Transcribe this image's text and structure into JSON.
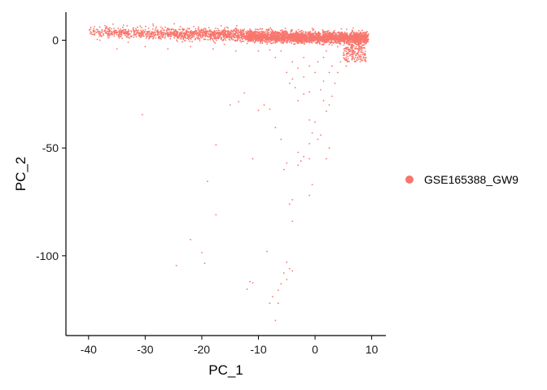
{
  "chart_data": {
    "type": "scatter",
    "xlabel": "PC_1",
    "ylabel": "PC_2",
    "xlim": [
      -44,
      12.5
    ],
    "ylim": [
      -137,
      13
    ],
    "x_ticks": [
      -40,
      -30,
      -20,
      -10,
      0,
      10
    ],
    "y_ticks": [
      0,
      -50,
      -100
    ],
    "x_tick_labels": [
      "-40",
      "-30",
      "-20",
      "-10",
      "0",
      "10"
    ],
    "y_tick_labels": [
      "0",
      "-50",
      "-100"
    ],
    "grid": false,
    "legend_position": "right",
    "series": [
      {
        "name": "GSE165388_GW9",
        "color": "#F8766D",
        "points_shown": "sample of dense cloud plus sparse outliers",
        "outliers": [
          [
            -30.5,
            -34.5
          ],
          [
            -24.5,
            -104.5
          ],
          [
            -22,
            -92.5
          ],
          [
            -20,
            -98.5
          ],
          [
            -19.5,
            -103.5
          ],
          [
            -19,
            -65.5
          ],
          [
            -17.5,
            -48.5
          ],
          [
            -17.5,
            -81
          ],
          [
            -15,
            -30
          ],
          [
            -13.5,
            -28.5
          ],
          [
            -12.5,
            -24.5
          ],
          [
            -11.5,
            -112
          ],
          [
            -11,
            -55
          ],
          [
            -11,
            -112.5
          ],
          [
            -12,
            -115.5
          ],
          [
            -10,
            -32.5
          ],
          [
            -9,
            -30
          ],
          [
            -8.5,
            -98
          ],
          [
            -8,
            -122
          ],
          [
            -7.5,
            -119
          ],
          [
            -7,
            -130
          ],
          [
            -6.5,
            -122
          ],
          [
            -6,
            -113
          ],
          [
            -6.5,
            -116
          ],
          [
            -5.5,
            -108
          ],
          [
            -5,
            -103
          ],
          [
            -5,
            -111
          ],
          [
            -4.5,
            -106
          ],
          [
            -4,
            -107
          ],
          [
            -4,
            -74
          ],
          [
            -4,
            -84
          ],
          [
            -4.5,
            -76
          ],
          [
            -5,
            -57
          ],
          [
            -5.5,
            -60
          ],
          [
            -6,
            -46
          ],
          [
            -7,
            -40.5
          ],
          [
            -8,
            -32
          ],
          [
            -3,
            -52
          ],
          [
            -3,
            -58
          ],
          [
            -2.5,
            -56
          ],
          [
            -2,
            -54
          ],
          [
            -1,
            -72
          ],
          [
            -1,
            -55
          ],
          [
            -0.5,
            -67
          ],
          [
            -1,
            -48
          ],
          [
            -0.5,
            -43
          ],
          [
            0,
            -38
          ],
          [
            -1,
            -37
          ],
          [
            0.5,
            -46
          ],
          [
            1,
            -44
          ],
          [
            2,
            -55
          ],
          [
            2.5,
            -50
          ],
          [
            -4,
            -18
          ],
          [
            -3.5,
            -22
          ],
          [
            -3,
            -28
          ],
          [
            -2,
            -25
          ],
          [
            -1,
            -24
          ],
          [
            -3,
            -13
          ],
          [
            -2,
            -17
          ],
          [
            -5,
            -15
          ],
          [
            -4.5,
            -20
          ],
          [
            0,
            -15
          ],
          [
            1,
            -23
          ],
          [
            1.5,
            -28
          ],
          [
            2,
            -33
          ],
          [
            2.5,
            -30
          ],
          [
            3,
            -26
          ],
          [
            1.5,
            -19
          ],
          [
            3.5,
            -20
          ],
          [
            4,
            -15
          ],
          [
            2.5,
            -15
          ],
          [
            3,
            -12
          ],
          [
            -6,
            -5
          ],
          [
            -7,
            -8
          ],
          [
            -8,
            -4.5
          ],
          [
            -4,
            -10
          ],
          [
            -2,
            -8
          ],
          [
            -1,
            -12
          ],
          [
            0.5,
            -10
          ],
          [
            1.5,
            -8
          ],
          [
            2,
            -5
          ],
          [
            4.5,
            -10
          ],
          [
            5,
            -7
          ],
          [
            5.5,
            -12
          ],
          [
            6,
            -5
          ],
          [
            4,
            -3
          ],
          [
            2.5,
            -2
          ],
          [
            -10,
            -5
          ],
          [
            -14,
            -5
          ],
          [
            -18,
            -4
          ],
          [
            -22,
            -3
          ],
          [
            -26,
            -4
          ],
          [
            -30,
            -3
          ],
          [
            -35,
            -4
          ],
          [
            -33,
            -1
          ],
          [
            -38,
            0
          ]
        ]
      }
    ]
  },
  "legend": {
    "items": [
      {
        "label": "GSE165388_GW9",
        "color": "#F8766D"
      }
    ]
  }
}
